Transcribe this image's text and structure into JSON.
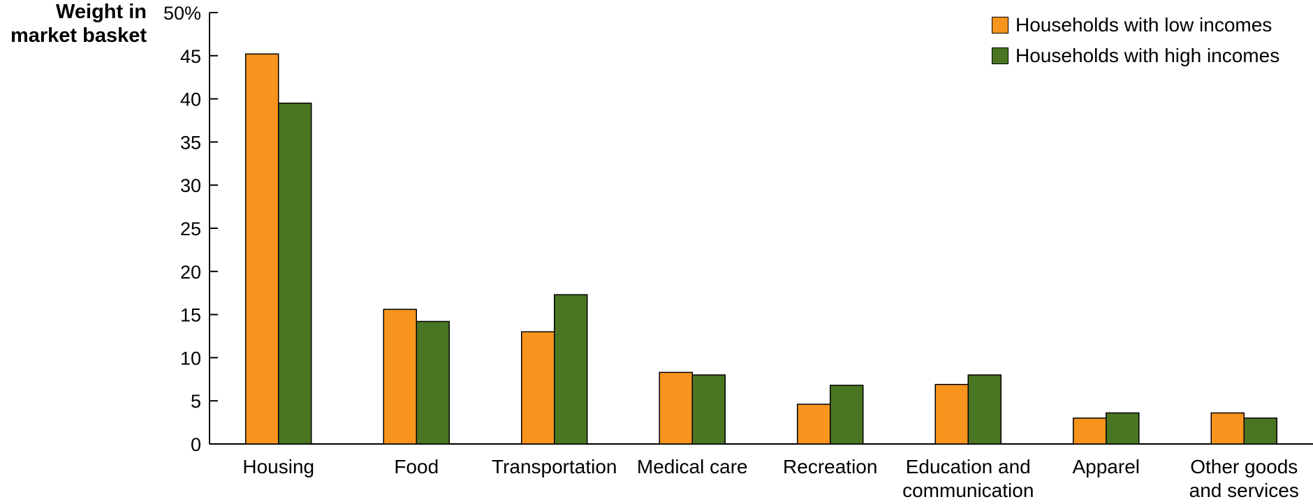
{
  "chart_data": {
    "type": "bar",
    "title": "",
    "ylabel_lines": [
      "Weight in",
      "market basket"
    ],
    "ylim": [
      0,
      50
    ],
    "yticks": [
      "0",
      "5",
      "10",
      "15",
      "20",
      "25",
      "30",
      "35",
      "40",
      "45",
      "50%"
    ],
    "categories": [
      [
        "Housing"
      ],
      [
        "Food"
      ],
      [
        "Transportation"
      ],
      [
        "Medical care"
      ],
      [
        "Recreation"
      ],
      [
        "Education and",
        "communication"
      ],
      [
        "Apparel"
      ],
      [
        "Other goods",
        "and services"
      ]
    ],
    "series": [
      {
        "name": "Households with low incomes",
        "color": "#F7941D",
        "values": [
          45.2,
          15.6,
          13.0,
          8.3,
          4.6,
          6.9,
          3.0,
          3.6
        ]
      },
      {
        "name": "Households with high incomes",
        "color": "#4A7623",
        "values": [
          39.5,
          14.2,
          17.3,
          8.0,
          6.8,
          8.0,
          3.6,
          3.0
        ]
      }
    ],
    "grid": false,
    "legend_position": "top-right"
  }
}
